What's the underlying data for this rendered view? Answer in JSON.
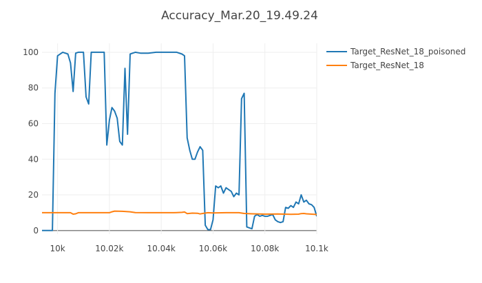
{
  "chart_data": {
    "type": "line",
    "title": "Accuracy_Mar.20_19.49.24",
    "xlabel": "",
    "ylabel": "",
    "xlim": [
      9994,
      10100
    ],
    "ylim": [
      -2,
      105
    ],
    "x_ticks": [
      {
        "value": 10000,
        "label": "10k"
      },
      {
        "value": 10020,
        "label": "10.02k"
      },
      {
        "value": 10040,
        "label": "10.04k"
      },
      {
        "value": 10060,
        "label": "10.06k"
      },
      {
        "value": 10080,
        "label": "10.08k"
      },
      {
        "value": 10100,
        "label": "10.1k"
      }
    ],
    "y_ticks": [
      0,
      20,
      40,
      60,
      80,
      100
    ],
    "grid": true,
    "legend_position": "top-right",
    "series": [
      {
        "name": "Target_ResNet_18_poisoned",
        "color": "#1f77b4",
        "x": [
          9994,
          9997,
          9998,
          9999,
          10000,
          10002,
          10003,
          10004,
          10005,
          10006,
          10007,
          10008,
          10009,
          10010,
          10011,
          10012,
          10013,
          10014,
          10016,
          10018,
          10019,
          10020,
          10021,
          10022,
          10023,
          10024,
          10025,
          10026,
          10027,
          10028,
          10029,
          10030,
          10032,
          10035,
          10038,
          10040,
          10043,
          10046,
          10048,
          10049,
          10050,
          10051,
          10052,
          10053,
          10054,
          10055,
          10056,
          10057,
          10058,
          10059,
          10060,
          10061,
          10062,
          10063,
          10064,
          10065,
          10066,
          10067,
          10068,
          10069,
          10070,
          10071,
          10072,
          10073,
          10074,
          10075,
          10076,
          10077,
          10078,
          10079,
          10080,
          10081,
          10082,
          10083,
          10084,
          10085,
          10086,
          10087,
          10088,
          10089,
          10090,
          10091,
          10092,
          10093,
          10094,
          10095,
          10096,
          10097,
          10098,
          10099,
          10100
        ],
        "values": [
          0,
          0,
          0,
          77,
          98,
          100,
          99.5,
          99,
          94,
          78,
          99.5,
          100,
          100,
          100,
          75,
          71,
          100,
          100,
          100,
          100,
          48,
          62,
          69,
          67,
          63,
          50,
          48,
          91,
          54,
          99,
          99.5,
          100,
          99.5,
          99.5,
          100,
          100,
          100,
          100,
          99,
          98,
          52,
          45,
          40,
          40,
          44,
          47,
          45,
          3,
          0.5,
          0.5,
          6,
          25,
          24,
          25,
          21,
          24,
          23,
          22,
          19,
          21,
          20,
          74,
          77,
          2,
          1.5,
          1,
          8,
          9,
          8,
          8.5,
          8,
          8,
          8.5,
          9,
          6,
          5,
          4.5,
          5,
          13,
          12.5,
          14,
          13,
          16,
          15,
          20,
          16,
          17,
          15,
          14.5,
          13,
          8
        ]
      },
      {
        "name": "Target_ResNet_18",
        "color": "#ff7f0e",
        "x": [
          9994,
          10000,
          10005,
          10006,
          10007,
          10008,
          10010,
          10015,
          10020,
          10021,
          10022,
          10025,
          10028,
          10030,
          10035,
          10040,
          10045,
          10048,
          10049,
          10050,
          10052,
          10054,
          10055,
          10056,
          10058,
          10060,
          10065,
          10070,
          10072,
          10075,
          10080,
          10085,
          10090,
          10093,
          10094,
          10095,
          10096,
          10100
        ],
        "values": [
          10,
          10,
          10,
          9.2,
          9.4,
          10,
          10,
          10,
          10,
          10.5,
          10.9,
          10.8,
          10.5,
          10.1,
          10,
          10,
          10,
          10.2,
          10.4,
          9.5,
          9.8,
          9.7,
          9.3,
          9.6,
          10,
          9.9,
          10,
          10,
          9.6,
          9.4,
          9.2,
          9.3,
          9.1,
          9.2,
          9.5,
          9.6,
          9.4,
          9
        ]
      }
    ]
  }
}
